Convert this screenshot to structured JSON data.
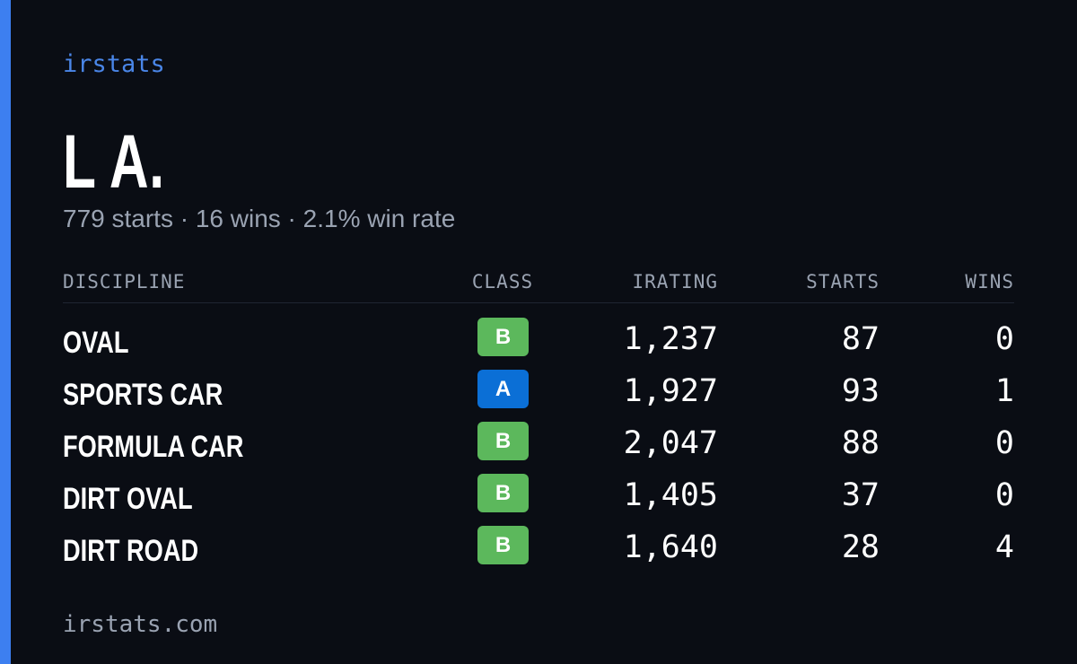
{
  "brand": "irstats",
  "driver": {
    "name": "L A.",
    "summary": "779 starts · 16 wins · 2.1% win rate"
  },
  "table": {
    "headers": [
      "DISCIPLINE",
      "CLASS",
      "IRATING",
      "STARTS",
      "WINS"
    ],
    "rows": [
      {
        "discipline": "OVAL",
        "class": "B",
        "class_color": "#5cb85c",
        "irating": "1,237",
        "starts": "87",
        "wins": "0"
      },
      {
        "discipline": "SPORTS CAR",
        "class": "A",
        "class_color": "#0b6fd6",
        "irating": "1,927",
        "starts": "93",
        "wins": "1"
      },
      {
        "discipline": "FORMULA CAR",
        "class": "B",
        "class_color": "#5cb85c",
        "irating": "2,047",
        "starts": "88",
        "wins": "0"
      },
      {
        "discipline": "DIRT OVAL",
        "class": "B",
        "class_color": "#5cb85c",
        "irating": "1,405",
        "starts": "37",
        "wins": "0"
      },
      {
        "discipline": "DIRT ROAD",
        "class": "B",
        "class_color": "#5cb85c",
        "irating": "1,640",
        "starts": "28",
        "wins": "4"
      }
    ]
  },
  "footer": "irstats.com"
}
